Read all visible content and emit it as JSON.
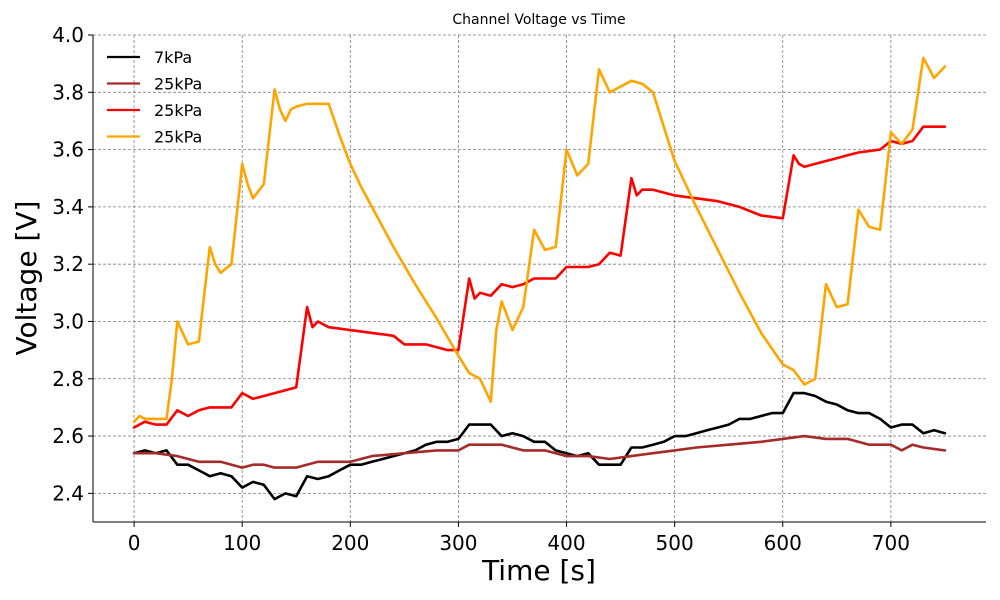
{
  "chart_data": {
    "type": "line",
    "title": "Channel Voltage vs Time",
    "xlabel": "Time [s]",
    "ylabel": "Voltage [V]",
    "xlim": [
      -38,
      788
    ],
    "ylim": [
      2.3,
      4.0
    ],
    "xticks": [
      0,
      100,
      200,
      300,
      400,
      500,
      600,
      700
    ],
    "yticks": [
      2.4,
      2.6,
      2.8,
      3.0,
      3.2,
      3.4,
      3.6,
      3.8,
      4.0
    ],
    "xtick_labels": [
      "0",
      "100",
      "200",
      "300",
      "400",
      "500",
      "600",
      "700"
    ],
    "ytick_labels": [
      "2.4",
      "2.6",
      "2.8",
      "3.0",
      "3.2",
      "3.4",
      "3.6",
      "3.8",
      "4.0"
    ],
    "grid": true,
    "legend_position": "top-left",
    "series": [
      {
        "name": "7kPa",
        "color": "#000000",
        "points": [
          [
            0,
            2.54
          ],
          [
            10,
            2.55
          ],
          [
            20,
            2.54
          ],
          [
            30,
            2.55
          ],
          [
            40,
            2.5
          ],
          [
            50,
            2.5
          ],
          [
            60,
            2.48
          ],
          [
            70,
            2.46
          ],
          [
            80,
            2.47
          ],
          [
            90,
            2.46
          ],
          [
            100,
            2.42
          ],
          [
            110,
            2.44
          ],
          [
            120,
            2.43
          ],
          [
            130,
            2.38
          ],
          [
            140,
            2.4
          ],
          [
            150,
            2.39
          ],
          [
            160,
            2.46
          ],
          [
            170,
            2.45
          ],
          [
            180,
            2.46
          ],
          [
            190,
            2.48
          ],
          [
            200,
            2.5
          ],
          [
            210,
            2.5
          ],
          [
            220,
            2.51
          ],
          [
            230,
            2.52
          ],
          [
            240,
            2.53
          ],
          [
            250,
            2.54
          ],
          [
            260,
            2.55
          ],
          [
            270,
            2.57
          ],
          [
            280,
            2.58
          ],
          [
            290,
            2.58
          ],
          [
            300,
            2.59
          ],
          [
            310,
            2.64
          ],
          [
            320,
            2.64
          ],
          [
            330,
            2.64
          ],
          [
            340,
            2.6
          ],
          [
            350,
            2.61
          ],
          [
            360,
            2.6
          ],
          [
            370,
            2.58
          ],
          [
            380,
            2.58
          ],
          [
            390,
            2.55
          ],
          [
            400,
            2.54
          ],
          [
            410,
            2.53
          ],
          [
            420,
            2.54
          ],
          [
            430,
            2.5
          ],
          [
            440,
            2.5
          ],
          [
            450,
            2.5
          ],
          [
            460,
            2.56
          ],
          [
            470,
            2.56
          ],
          [
            480,
            2.57
          ],
          [
            490,
            2.58
          ],
          [
            500,
            2.6
          ],
          [
            510,
            2.6
          ],
          [
            520,
            2.61
          ],
          [
            530,
            2.62
          ],
          [
            540,
            2.63
          ],
          [
            550,
            2.64
          ],
          [
            560,
            2.66
          ],
          [
            570,
            2.66
          ],
          [
            580,
            2.67
          ],
          [
            590,
            2.68
          ],
          [
            600,
            2.68
          ],
          [
            610,
            2.75
          ],
          [
            620,
            2.75
          ],
          [
            630,
            2.74
          ],
          [
            640,
            2.72
          ],
          [
            650,
            2.71
          ],
          [
            660,
            2.69
          ],
          [
            670,
            2.68
          ],
          [
            680,
            2.68
          ],
          [
            690,
            2.66
          ],
          [
            700,
            2.63
          ],
          [
            710,
            2.64
          ],
          [
            720,
            2.64
          ],
          [
            730,
            2.61
          ],
          [
            740,
            2.62
          ],
          [
            750,
            2.61
          ]
        ]
      },
      {
        "name": "25kPa",
        "color": "#a52a2a",
        "points": [
          [
            0,
            2.54
          ],
          [
            20,
            2.54
          ],
          [
            40,
            2.53
          ],
          [
            60,
            2.51
          ],
          [
            80,
            2.51
          ],
          [
            100,
            2.49
          ],
          [
            110,
            2.5
          ],
          [
            120,
            2.5
          ],
          [
            130,
            2.49
          ],
          [
            150,
            2.49
          ],
          [
            170,
            2.51
          ],
          [
            200,
            2.51
          ],
          [
            220,
            2.53
          ],
          [
            250,
            2.54
          ],
          [
            280,
            2.55
          ],
          [
            300,
            2.55
          ],
          [
            310,
            2.57
          ],
          [
            340,
            2.57
          ],
          [
            360,
            2.55
          ],
          [
            380,
            2.55
          ],
          [
            400,
            2.53
          ],
          [
            420,
            2.53
          ],
          [
            440,
            2.52
          ],
          [
            460,
            2.53
          ],
          [
            480,
            2.54
          ],
          [
            500,
            2.55
          ],
          [
            520,
            2.56
          ],
          [
            550,
            2.57
          ],
          [
            580,
            2.58
          ],
          [
            600,
            2.59
          ],
          [
            620,
            2.6
          ],
          [
            640,
            2.59
          ],
          [
            660,
            2.59
          ],
          [
            680,
            2.57
          ],
          [
            700,
            2.57
          ],
          [
            710,
            2.55
          ],
          [
            720,
            2.57
          ],
          [
            730,
            2.56
          ],
          [
            750,
            2.55
          ]
        ]
      },
      {
        "name": "25kPa",
        "color": "#ff0000",
        "points": [
          [
            0,
            2.63
          ],
          [
            10,
            2.65
          ],
          [
            20,
            2.64
          ],
          [
            30,
            2.64
          ],
          [
            40,
            2.69
          ],
          [
            50,
            2.67
          ],
          [
            60,
            2.69
          ],
          [
            70,
            2.7
          ],
          [
            80,
            2.7
          ],
          [
            90,
            2.7
          ],
          [
            100,
            2.75
          ],
          [
            110,
            2.73
          ],
          [
            120,
            2.74
          ],
          [
            130,
            2.75
          ],
          [
            140,
            2.76
          ],
          [
            150,
            2.77
          ],
          [
            160,
            3.05
          ],
          [
            165,
            2.98
          ],
          [
            170,
            3.0
          ],
          [
            180,
            2.98
          ],
          [
            200,
            2.97
          ],
          [
            220,
            2.96
          ],
          [
            240,
            2.95
          ],
          [
            250,
            2.92
          ],
          [
            270,
            2.92
          ],
          [
            290,
            2.9
          ],
          [
            300,
            2.9
          ],
          [
            310,
            3.15
          ],
          [
            315,
            3.08
          ],
          [
            320,
            3.1
          ],
          [
            330,
            3.09
          ],
          [
            340,
            3.13
          ],
          [
            350,
            3.12
          ],
          [
            360,
            3.13
          ],
          [
            370,
            3.15
          ],
          [
            390,
            3.15
          ],
          [
            400,
            3.19
          ],
          [
            420,
            3.19
          ],
          [
            430,
            3.2
          ],
          [
            440,
            3.24
          ],
          [
            450,
            3.23
          ],
          [
            460,
            3.5
          ],
          [
            465,
            3.44
          ],
          [
            470,
            3.46
          ],
          [
            480,
            3.46
          ],
          [
            490,
            3.45
          ],
          [
            500,
            3.44
          ],
          [
            520,
            3.43
          ],
          [
            540,
            3.42
          ],
          [
            560,
            3.4
          ],
          [
            580,
            3.37
          ],
          [
            600,
            3.36
          ],
          [
            610,
            3.58
          ],
          [
            615,
            3.55
          ],
          [
            620,
            3.54
          ],
          [
            630,
            3.55
          ],
          [
            640,
            3.56
          ],
          [
            650,
            3.57
          ],
          [
            660,
            3.58
          ],
          [
            670,
            3.59
          ],
          [
            690,
            3.6
          ],
          [
            700,
            3.63
          ],
          [
            710,
            3.62
          ],
          [
            720,
            3.63
          ],
          [
            730,
            3.68
          ],
          [
            750,
            3.68
          ]
        ]
      },
      {
        "name": "25kPa",
        "color": "#ffa500",
        "points": [
          [
            0,
            2.65
          ],
          [
            5,
            2.67
          ],
          [
            10,
            2.66
          ],
          [
            30,
            2.66
          ],
          [
            35,
            2.8
          ],
          [
            40,
            3.0
          ],
          [
            45,
            2.96
          ],
          [
            50,
            2.92
          ],
          [
            60,
            2.93
          ],
          [
            65,
            3.1
          ],
          [
            70,
            3.26
          ],
          [
            75,
            3.2
          ],
          [
            80,
            3.17
          ],
          [
            90,
            3.2
          ],
          [
            100,
            3.55
          ],
          [
            105,
            3.48
          ],
          [
            110,
            3.43
          ],
          [
            120,
            3.48
          ],
          [
            130,
            3.81
          ],
          [
            135,
            3.74
          ],
          [
            140,
            3.7
          ],
          [
            145,
            3.74
          ],
          [
            150,
            3.75
          ],
          [
            160,
            3.76
          ],
          [
            170,
            3.76
          ],
          [
            180,
            3.76
          ],
          [
            190,
            3.65
          ],
          [
            200,
            3.55
          ],
          [
            210,
            3.47
          ],
          [
            220,
            3.4
          ],
          [
            240,
            3.26
          ],
          [
            260,
            3.13
          ],
          [
            280,
            3.01
          ],
          [
            300,
            2.88
          ],
          [
            310,
            2.82
          ],
          [
            320,
            2.8
          ],
          [
            330,
            2.72
          ],
          [
            335,
            2.97
          ],
          [
            340,
            3.07
          ],
          [
            345,
            3.02
          ],
          [
            350,
            2.97
          ],
          [
            360,
            3.05
          ],
          [
            370,
            3.32
          ],
          [
            380,
            3.25
          ],
          [
            390,
            3.26
          ],
          [
            400,
            3.6
          ],
          [
            410,
            3.51
          ],
          [
            420,
            3.55
          ],
          [
            430,
            3.88
          ],
          [
            440,
            3.8
          ],
          [
            450,
            3.82
          ],
          [
            460,
            3.84
          ],
          [
            470,
            3.83
          ],
          [
            480,
            3.8
          ],
          [
            490,
            3.68
          ],
          [
            500,
            3.56
          ],
          [
            510,
            3.48
          ],
          [
            520,
            3.4
          ],
          [
            540,
            3.25
          ],
          [
            560,
            3.1
          ],
          [
            580,
            2.96
          ],
          [
            600,
            2.85
          ],
          [
            610,
            2.83
          ],
          [
            620,
            2.78
          ],
          [
            630,
            2.8
          ],
          [
            640,
            3.13
          ],
          [
            650,
            3.05
          ],
          [
            660,
            3.06
          ],
          [
            670,
            3.39
          ],
          [
            680,
            3.33
          ],
          [
            690,
            3.32
          ],
          [
            700,
            3.66
          ],
          [
            710,
            3.62
          ],
          [
            720,
            3.67
          ],
          [
            730,
            3.92
          ],
          [
            740,
            3.85
          ],
          [
            750,
            3.89
          ]
        ]
      }
    ]
  }
}
